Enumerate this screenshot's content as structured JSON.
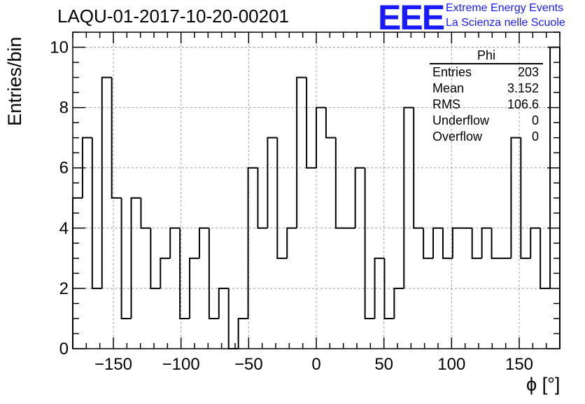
{
  "header": {
    "title": "LAQU-01-2017-10-20-00201",
    "logo": "EEE",
    "logo_line1": "Extreme Energy Events",
    "logo_line2": "La Scienza nelle Scuole"
  },
  "stats_box": {
    "title": "Phi",
    "rows": [
      {
        "label": "Entries",
        "value": "203"
      },
      {
        "label": "Mean",
        "value": "3.152"
      },
      {
        "label": "RMS",
        "value": "106.6"
      },
      {
        "label": "Underflow",
        "value": "0"
      },
      {
        "label": "Overflow",
        "value": "0"
      }
    ]
  },
  "chart_data": {
    "type": "histogram",
    "title": "LAQU-01-2017-10-20-00201",
    "xlabel": "ϕ [°]",
    "ylabel": "Entries/bin",
    "xlim": [
      -180,
      180
    ],
    "ylim": [
      0,
      10.5
    ],
    "grid": true,
    "bin_width": 7.2,
    "bin_edges_start": -180,
    "values": [
      5,
      7,
      2,
      9,
      5,
      1,
      5,
      4,
      2,
      3,
      4,
      1,
      3,
      4,
      1,
      2,
      0,
      1,
      6,
      4,
      7,
      3,
      4,
      9,
      6,
      8,
      7,
      4,
      4,
      6,
      1,
      3,
      1,
      2,
      8,
      4,
      3,
      4,
      3,
      4,
      4,
      3,
      4,
      3,
      3,
      7,
      3,
      4,
      2,
      10
    ],
    "x_ticks": [
      -150,
      -100,
      -50,
      0,
      50,
      100,
      150
    ],
    "x_tick_labels": [
      "−150",
      "−100",
      "−50",
      "0",
      "50",
      "100",
      "150"
    ],
    "y_ticks": [
      0,
      2,
      4,
      6,
      8,
      10
    ],
    "y_tick_labels": [
      "0",
      "2",
      "4",
      "6",
      "8",
      "10"
    ],
    "line_color": "#000000",
    "grid_color": "#a0a0a0"
  }
}
